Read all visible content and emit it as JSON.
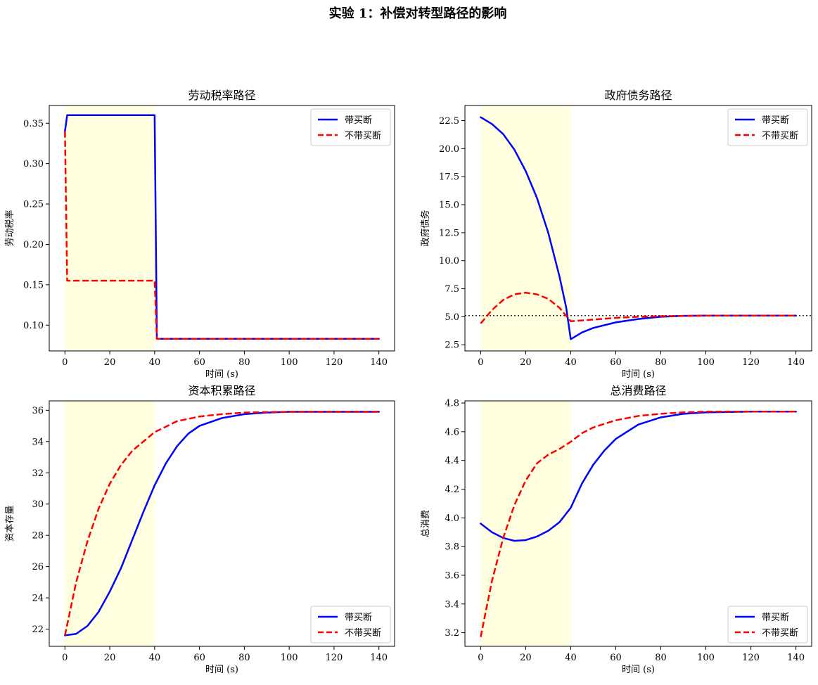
{
  "figure": {
    "suptitle": "实验 1：补偿对转型路径的影响"
  },
  "colors": {
    "with_buyout": "#0000ff",
    "without_buyout": "#ff0000",
    "shade": "#ffffe0",
    "reference_line": "#333333"
  },
  "chart_data": [
    {
      "type": "line",
      "title": "劳动税率路径",
      "xlabel": "时间 (s)",
      "ylabel": "劳动税率",
      "xlim": [
        -7,
        147
      ],
      "ylim": [
        0.068,
        0.372
      ],
      "xticks": [
        0,
        20,
        40,
        60,
        80,
        100,
        120,
        140
      ],
      "yticks": [
        0.1,
        0.15,
        0.2,
        0.25,
        0.3,
        0.35
      ],
      "ytick_decimals": 2,
      "shaded_interval": [
        0,
        40
      ],
      "legend_loc": "upper right",
      "grid": false,
      "series": [
        {
          "name": "带买断",
          "style": "solid",
          "color": "#0000ff",
          "points": [
            [
              0,
              0.34
            ],
            [
              1,
              0.36
            ],
            [
              40,
              0.36
            ],
            [
              41,
              0.083
            ],
            [
              140,
              0.083
            ]
          ]
        },
        {
          "name": "不带买断",
          "style": "dashed",
          "color": "#ff0000",
          "points": [
            [
              0,
              0.34
            ],
            [
              1,
              0.155
            ],
            [
              40,
              0.155
            ],
            [
              41,
              0.083
            ],
            [
              140,
              0.083
            ]
          ]
        }
      ]
    },
    {
      "type": "line",
      "title": "政府债务路径",
      "xlabel": "时间 (s)",
      "ylabel": "政府债务",
      "xlim": [
        -7,
        147
      ],
      "ylim": [
        1.95,
        23.85
      ],
      "xticks": [
        0,
        20,
        40,
        60,
        80,
        100,
        120,
        140
      ],
      "yticks": [
        2.5,
        5.0,
        7.5,
        10.0,
        12.5,
        15.0,
        17.5,
        20.0,
        22.5
      ],
      "ytick_decimals": 1,
      "shaded_interval": [
        0,
        40
      ],
      "reference_line_y": 5.1,
      "legend_loc": "upper right",
      "grid": false,
      "series": [
        {
          "name": "带买断",
          "style": "solid",
          "color": "#0000ff",
          "points": [
            [
              0,
              22.8
            ],
            [
              5,
              22.2
            ],
            [
              10,
              21.3
            ],
            [
              15,
              19.9
            ],
            [
              20,
              18.0
            ],
            [
              25,
              15.6
            ],
            [
              30,
              12.5
            ],
            [
              35,
              8.6
            ],
            [
              38,
              5.8
            ],
            [
              40,
              3.0
            ],
            [
              45,
              3.6
            ],
            [
              50,
              4.0
            ],
            [
              60,
              4.5
            ],
            [
              70,
              4.8
            ],
            [
              80,
              5.0
            ],
            [
              90,
              5.08
            ],
            [
              100,
              5.1
            ],
            [
              120,
              5.1
            ],
            [
              140,
              5.1
            ]
          ]
        },
        {
          "name": "不带买断",
          "style": "dashed",
          "color": "#ff0000",
          "points": [
            [
              0,
              4.4
            ],
            [
              5,
              5.6
            ],
            [
              10,
              6.5
            ],
            [
              15,
              7.0
            ],
            [
              20,
              7.15
            ],
            [
              25,
              7.0
            ],
            [
              30,
              6.6
            ],
            [
              35,
              5.8
            ],
            [
              40,
              4.6
            ],
            [
              50,
              4.75
            ],
            [
              60,
              4.9
            ],
            [
              70,
              5.0
            ],
            [
              80,
              5.05
            ],
            [
              100,
              5.1
            ],
            [
              120,
              5.1
            ],
            [
              140,
              5.1
            ]
          ]
        }
      ]
    },
    {
      "type": "line",
      "title": "资本积累路径",
      "xlabel": "时间 (s)",
      "ylabel": "资本存量",
      "xlim": [
        -7,
        147
      ],
      "ylim": [
        20.9,
        36.6
      ],
      "xticks": [
        0,
        20,
        40,
        60,
        80,
        100,
        120,
        140
      ],
      "yticks": [
        22,
        24,
        26,
        28,
        30,
        32,
        34,
        36
      ],
      "ytick_decimals": 0,
      "shaded_interval": [
        0,
        40
      ],
      "legend_loc": "lower right",
      "grid": false,
      "series": [
        {
          "name": "带买断",
          "style": "solid",
          "color": "#0000ff",
          "points": [
            [
              0,
              21.6
            ],
            [
              5,
              21.7
            ],
            [
              10,
              22.2
            ],
            [
              15,
              23.1
            ],
            [
              20,
              24.4
            ],
            [
              25,
              25.9
            ],
            [
              30,
              27.7
            ],
            [
              35,
              29.5
            ],
            [
              40,
              31.2
            ],
            [
              45,
              32.6
            ],
            [
              50,
              33.7
            ],
            [
              55,
              34.5
            ],
            [
              60,
              35.0
            ],
            [
              70,
              35.5
            ],
            [
              80,
              35.75
            ],
            [
              90,
              35.85
            ],
            [
              100,
              35.9
            ],
            [
              120,
              35.9
            ],
            [
              140,
              35.9
            ]
          ]
        },
        {
          "name": "不带买断",
          "style": "dashed",
          "color": "#ff0000",
          "points": [
            [
              0,
              21.6
            ],
            [
              5,
              25.0
            ],
            [
              10,
              27.6
            ],
            [
              15,
              29.7
            ],
            [
              20,
              31.3
            ],
            [
              25,
              32.5
            ],
            [
              30,
              33.4
            ],
            [
              35,
              34.0
            ],
            [
              40,
              34.6
            ],
            [
              50,
              35.3
            ],
            [
              60,
              35.6
            ],
            [
              70,
              35.75
            ],
            [
              80,
              35.85
            ],
            [
              90,
              35.88
            ],
            [
              100,
              35.9
            ],
            [
              120,
              35.9
            ],
            [
              140,
              35.9
            ]
          ]
        }
      ]
    },
    {
      "type": "line",
      "title": "总消费路径",
      "xlabel": "时间 (s)",
      "ylabel": "总消费",
      "xlim": [
        -7,
        147
      ],
      "ylim": [
        3.105,
        4.815
      ],
      "xticks": [
        0,
        20,
        40,
        60,
        80,
        100,
        120,
        140
      ],
      "yticks": [
        3.2,
        3.4,
        3.6,
        3.8,
        4.0,
        4.2,
        4.4,
        4.6,
        4.8
      ],
      "ytick_decimals": 1,
      "shaded_interval": [
        0,
        40
      ],
      "legend_loc": "lower right",
      "grid": false,
      "series": [
        {
          "name": "带买断",
          "style": "solid",
          "color": "#0000ff",
          "points": [
            [
              0,
              3.96
            ],
            [
              5,
              3.9
            ],
            [
              10,
              3.86
            ],
            [
              15,
              3.84
            ],
            [
              20,
              3.845
            ],
            [
              25,
              3.87
            ],
            [
              30,
              3.91
            ],
            [
              35,
              3.97
            ],
            [
              40,
              4.07
            ],
            [
              45,
              4.24
            ],
            [
              50,
              4.37
            ],
            [
              55,
              4.47
            ],
            [
              60,
              4.55
            ],
            [
              70,
              4.65
            ],
            [
              80,
              4.7
            ],
            [
              90,
              4.725
            ],
            [
              100,
              4.735
            ],
            [
              120,
              4.74
            ],
            [
              140,
              4.74
            ]
          ]
        },
        {
          "name": "不带买断",
          "style": "dashed",
          "color": "#ff0000",
          "points": [
            [
              0,
              3.17
            ],
            [
              5,
              3.56
            ],
            [
              10,
              3.86
            ],
            [
              15,
              4.09
            ],
            [
              20,
              4.26
            ],
            [
              25,
              4.38
            ],
            [
              30,
              4.44
            ],
            [
              35,
              4.48
            ],
            [
              40,
              4.53
            ],
            [
              45,
              4.59
            ],
            [
              50,
              4.63
            ],
            [
              60,
              4.68
            ],
            [
              70,
              4.71
            ],
            [
              80,
              4.725
            ],
            [
              90,
              4.735
            ],
            [
              100,
              4.74
            ],
            [
              120,
              4.74
            ],
            [
              140,
              4.74
            ]
          ]
        }
      ]
    }
  ]
}
